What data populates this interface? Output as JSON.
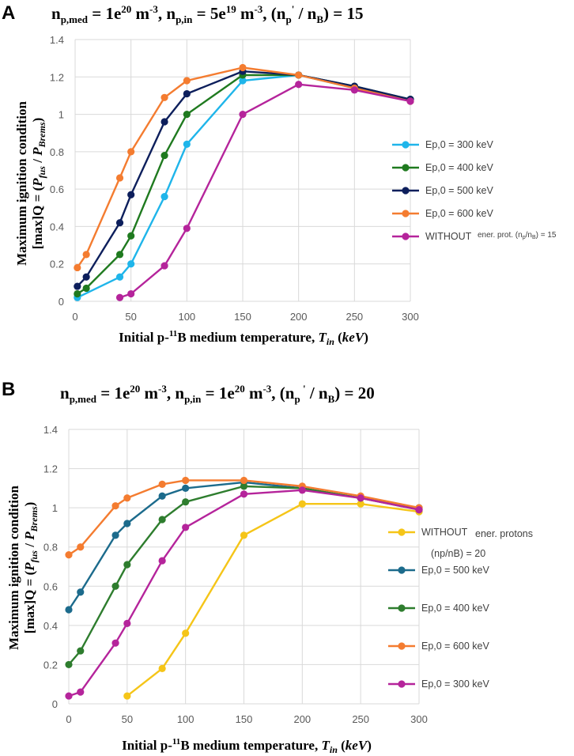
{
  "chart_data": [
    {
      "panel": "A",
      "type": "line",
      "title": "n_p,med = 1e20 m^-3, n_p,in = 5e19 m^-3, (n_p' / n_B) = 15",
      "title_parts": [
        "n",
        "p,med",
        " = 1e",
        "20",
        " m",
        "-3",
        ", n",
        "p,in",
        " = 5e",
        "19",
        " m",
        "-3",
        ", (n",
        "p",
        "'",
        " / n",
        "B",
        ") = 15"
      ],
      "xlabel": "Initial p-11B medium temperature, Tin (keV)",
      "xlabel_parts": [
        "Initial p-",
        "11",
        "B medium temperature, ",
        "T",
        "in",
        " (",
        "keV",
        ")"
      ],
      "ylabel": "Maximum ignition condition [max]Q = (Pfus / PBrems)",
      "ylabel_line1": "Maximum ignition condition",
      "ylabel_line2_parts": [
        "[max]Q = (",
        "P",
        "fus",
        " / ",
        "P",
        "Brems",
        ")"
      ],
      "xlim": [
        0,
        300
      ],
      "ylim": [
        0,
        1.4
      ],
      "xticks": [
        "0",
        "50",
        "100",
        "150",
        "200",
        "250",
        "300"
      ],
      "yticks": [
        "0",
        "0.2",
        "0.4",
        "0.6",
        "0.8",
        "1",
        "1.2",
        "1.4"
      ],
      "legend_position": "right",
      "series": [
        {
          "name": "Ep,0 = 300 keV",
          "color": "#1fb5ea",
          "x": [
            2,
            40,
            50,
            80,
            100,
            150,
            200,
            250,
            300
          ],
          "y": [
            0.02,
            0.13,
            0.2,
            0.56,
            0.84,
            1.18,
            1.21,
            1.14,
            1.08
          ]
        },
        {
          "name": "Ep,0 = 400 keV",
          "color": "#1f7a1f",
          "x": [
            2,
            10,
            40,
            50,
            80,
            100,
            150,
            200,
            250,
            300
          ],
          "y": [
            0.04,
            0.07,
            0.25,
            0.35,
            0.78,
            1.0,
            1.21,
            1.21,
            1.15,
            1.08
          ]
        },
        {
          "name": "Ep,0 = 500 keV",
          "color": "#0d1f5c",
          "x": [
            2,
            10,
            40,
            50,
            80,
            100,
            150,
            200,
            250,
            300
          ],
          "y": [
            0.08,
            0.13,
            0.42,
            0.57,
            0.96,
            1.11,
            1.23,
            1.21,
            1.15,
            1.08
          ]
        },
        {
          "name": "Ep,0 = 600 keV",
          "color": "#f47c30",
          "x": [
            2,
            10,
            40,
            50,
            80,
            100,
            150,
            200,
            250,
            300
          ],
          "y": [
            0.18,
            0.25,
            0.66,
            0.8,
            1.09,
            1.18,
            1.25,
            1.21,
            1.14,
            1.07
          ]
        },
        {
          "name": "WITHOUT",
          "color": "#b5249b",
          "x": [
            40,
            50,
            80,
            100,
            150,
            200,
            250,
            300
          ],
          "y": [
            0.02,
            0.04,
            0.19,
            0.39,
            1.0,
            1.16,
            1.13,
            1.07
          ]
        }
      ],
      "legend_note_parts": [
        "ener. prot. (n",
        "p",
        "/n",
        "B",
        ") = 15"
      ]
    },
    {
      "panel": "B",
      "type": "line",
      "title": "n_p,med = 1e20 m^-3, n_p,in = 1e20 m^-3, (n_p ' / n_B) = 20",
      "title_parts": [
        "n",
        "p,med",
        " = 1e",
        "20",
        " m",
        "-3",
        ", n",
        "p,in",
        " = 1e",
        "20",
        " m",
        "-3",
        ", (n",
        "p",
        " '",
        " / n",
        "B",
        ") = 20"
      ],
      "xlabel": "Initial p-11B medium temperature, Tin (keV)",
      "xlabel_parts": [
        "Initial p-",
        "11",
        "B medium temperature, ",
        "T",
        "in",
        " (",
        "keV",
        ")"
      ],
      "ylabel": "Maximum ignition condition [max]Q = (Pfus / PBrems)",
      "ylabel_line1": "Maximum ignition condition",
      "ylabel_line2_parts": [
        "[max]Q = (",
        "P",
        "fus",
        " / ",
        "P",
        "Brems",
        ")"
      ],
      "xlim": [
        0,
        300
      ],
      "ylim": [
        0,
        1.4
      ],
      "xticks": [
        "0",
        "50",
        "100",
        "150",
        "200",
        "250",
        "300"
      ],
      "yticks": [
        "0",
        "0.2",
        "0.4",
        "0.6",
        "0.8",
        "1",
        "1.2",
        "1.4"
      ],
      "legend_position": "right",
      "series": [
        {
          "name": "WITHOUT",
          "color": "#f5c518",
          "x": [
            50,
            80,
            100,
            150,
            200,
            250,
            300
          ],
          "y": [
            0.04,
            0.18,
            0.36,
            0.86,
            1.02,
            1.02,
            0.98
          ]
        },
        {
          "name": "Ep,0 = 500 keV",
          "color": "#1c6b8c",
          "x": [
            0,
            10,
            40,
            50,
            80,
            100,
            150,
            200,
            250,
            300
          ],
          "y": [
            0.48,
            0.57,
            0.86,
            0.92,
            1.06,
            1.1,
            1.13,
            1.1,
            1.05,
            1.0
          ]
        },
        {
          "name": "Ep,0 = 400 keV",
          "color": "#2e7d2e",
          "x": [
            0,
            10,
            40,
            50,
            80,
            100,
            150,
            200,
            250,
            300
          ],
          "y": [
            0.2,
            0.27,
            0.6,
            0.71,
            0.94,
            1.03,
            1.11,
            1.1,
            1.05,
            0.99
          ]
        },
        {
          "name": "Ep,0 = 600 keV",
          "color": "#f47c30",
          "x": [
            0,
            10,
            40,
            50,
            80,
            100,
            150,
            200,
            250,
            300
          ],
          "y": [
            0.76,
            0.8,
            1.01,
            1.05,
            1.12,
            1.14,
            1.14,
            1.11,
            1.06,
            1.0
          ]
        },
        {
          "name": "Ep,0 = 300 keV",
          "color": "#b5249b",
          "x": [
            0,
            10,
            40,
            50,
            80,
            100,
            150,
            200,
            250,
            300
          ],
          "y": [
            0.04,
            0.06,
            0.31,
            0.41,
            0.73,
            0.9,
            1.07,
            1.09,
            1.05,
            0.99
          ]
        }
      ],
      "legend_note_parts": [
        "ener. protons",
        "(np/nB) = 20"
      ]
    }
  ]
}
